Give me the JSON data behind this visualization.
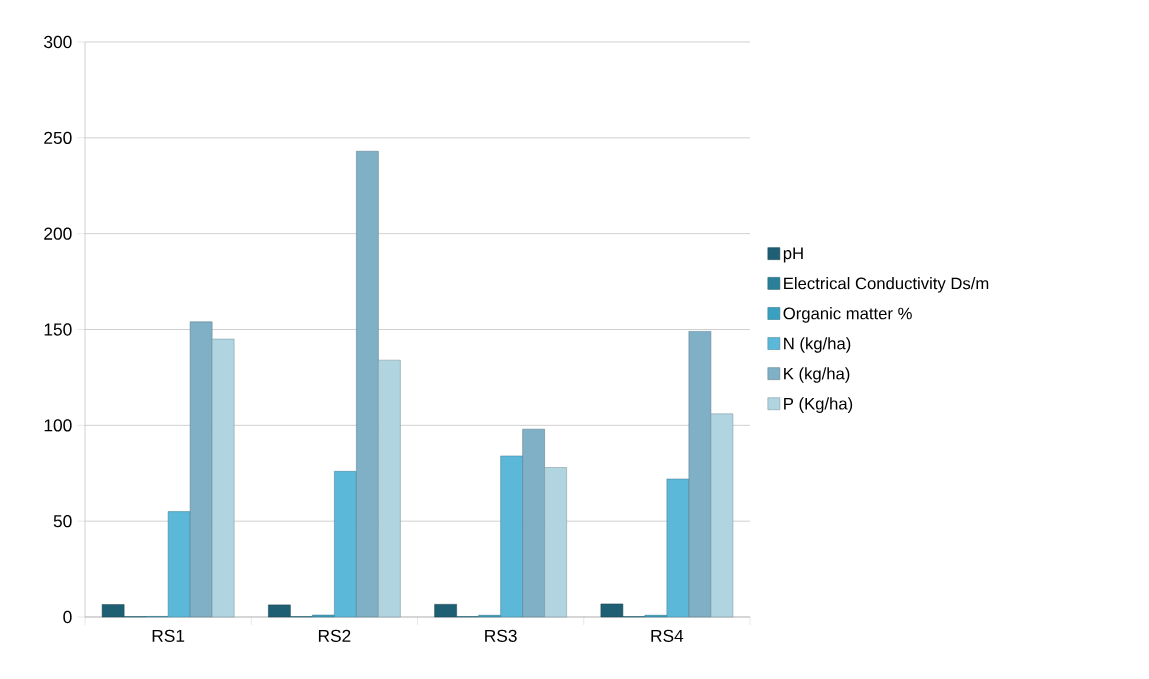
{
  "chart_data": {
    "type": "bar",
    "categories": [
      "RS1",
      "RS2",
      "RS3",
      "RS4"
    ],
    "series": [
      {
        "name": "pH",
        "color": "#1f5f73",
        "values": [
          6.5,
          6.3,
          6.6,
          6.8
        ]
      },
      {
        "name": "Electrical Conductivity    Ds/m",
        "color": "#2a7f99",
        "values": [
          0.2,
          0.2,
          0.2,
          0.2
        ]
      },
      {
        "name": "Organic matter %",
        "color": "#3aa0c0",
        "values": [
          0.3,
          1.0,
          0.9,
          0.9
        ]
      },
      {
        "name": "N (kg/ha)",
        "color": "#5cb8d8",
        "values": [
          55,
          76,
          84,
          72
        ]
      },
      {
        "name": "K (kg/ha)",
        "color": "#7fb0c5",
        "values": [
          154,
          243,
          98,
          149
        ]
      },
      {
        "name": "P (Kg/ha)",
        "color": "#b0d4e0",
        "values": [
          145,
          134,
          78,
          106
        ]
      }
    ],
    "ylim": [
      0,
      300
    ],
    "yticks": [
      0,
      50,
      100,
      150,
      200,
      250,
      300
    ],
    "grid": "y",
    "legend": "right"
  }
}
